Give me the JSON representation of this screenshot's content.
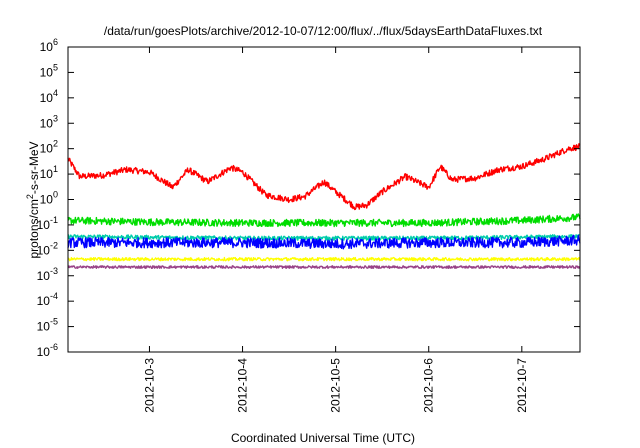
{
  "chart_data": {
    "type": "line",
    "title": "/data/run/goesPlots/archive/2012-10-07/12:00/flux/../flux/5daysEarthDataFluxes.txt",
    "xlabel": "Coordinated Universal Time (UTC)",
    "ylabel": {
      "prefix": "protons/cm",
      "sup": "2",
      "suffix": "-s-sr-MeV"
    },
    "yscale": "log",
    "ylim_exp": [
      -6,
      6
    ],
    "xlim": [
      "2012-10-02T03:00",
      "2012-10-07T15:00"
    ],
    "x_ticks": [
      {
        "date": "2012-10-03T00:00",
        "label": "2012-10-3"
      },
      {
        "date": "2012-10-04T00:00",
        "label": "2012-10-4"
      },
      {
        "date": "2012-10-05T00:00",
        "label": "2012-10-5"
      },
      {
        "date": "2012-10-06T00:00",
        "label": "2012-10-6"
      },
      {
        "date": "2012-10-07T00:00",
        "label": "2012-10-7"
      }
    ],
    "y_ticks": [
      {
        "base": "10",
        "exp": "-6",
        "value": 1e-06
      },
      {
        "base": "10",
        "exp": "-5",
        "value": 1e-05
      },
      {
        "base": "10",
        "exp": "-4",
        "value": 0.0001
      },
      {
        "base": "10",
        "exp": "-3",
        "value": 0.001
      },
      {
        "base": "10",
        "exp": "-2",
        "value": 0.01
      },
      {
        "base": "10",
        "exp": "-1",
        "value": 0.1
      },
      {
        "base": "10",
        "exp": "0",
        "value": 1
      },
      {
        "base": "10",
        "exp": "1",
        "value": 10
      },
      {
        "base": "10",
        "exp": "2",
        "value": 100
      },
      {
        "base": "10",
        "exp": "3",
        "value": 1000
      },
      {
        "base": "10",
        "exp": "4",
        "value": 10000
      },
      {
        "base": "10",
        "exp": "5",
        "value": 100000
      },
      {
        "base": "10",
        "exp": "6",
        "value": 1000000
      }
    ],
    "grid": false,
    "legend": "none",
    "series": [
      {
        "color": "#ff0000",
        "noise": 0.12,
        "x": [
          "2012-10-02T03:00",
          "2012-10-02T06:00",
          "2012-10-02T12:00",
          "2012-10-02T18:00",
          "2012-10-03T00:00",
          "2012-10-03T06:00",
          "2012-10-03T10:00",
          "2012-10-03T15:00",
          "2012-10-03T21:00",
          "2012-10-04T00:00",
          "2012-10-04T06:00",
          "2012-10-04T12:00",
          "2012-10-04T16:00",
          "2012-10-04T21:00",
          "2012-10-05T00:00",
          "2012-10-05T05:00",
          "2012-10-05T08:00",
          "2012-10-05T12:00",
          "2012-10-05T18:00",
          "2012-10-06T00:00",
          "2012-10-06T03:00",
          "2012-10-06T06:00",
          "2012-10-06T12:00",
          "2012-10-06T18:00",
          "2012-10-07T00:00",
          "2012-10-07T06:00",
          "2012-10-07T12:00",
          "2012-10-07T15:00"
        ],
        "y": [
          40,
          8,
          9,
          15,
          12,
          3,
          15,
          5,
          18,
          12,
          1.5,
          1.0,
          1.3,
          5,
          2,
          0.5,
          0.6,
          2,
          8,
          3,
          20,
          6,
          7,
          15,
          20,
          40,
          100,
          120
        ]
      },
      {
        "color": "#00dd00",
        "noise": 0.14,
        "x": [
          "2012-10-02T03:00",
          "2012-10-03T00:00",
          "2012-10-04T00:00",
          "2012-10-05T00:00",
          "2012-10-06T00:00",
          "2012-10-07T00:00",
          "2012-10-07T15:00"
        ],
        "y": [
          0.15,
          0.13,
          0.12,
          0.12,
          0.12,
          0.15,
          0.2
        ]
      },
      {
        "color": "#00ccaa",
        "noise": 0.08,
        "x": [
          "2012-10-02T03:00",
          "2012-10-04T00:00",
          "2012-10-06T00:00",
          "2012-10-07T15:00"
        ],
        "y": [
          0.035,
          0.03,
          0.03,
          0.035
        ]
      },
      {
        "color": "#0000ff",
        "noise": 0.2,
        "x": [
          "2012-10-02T03:00",
          "2012-10-03T00:00",
          "2012-10-04T00:00",
          "2012-10-05T00:00",
          "2012-10-06T00:00",
          "2012-10-07T00:00",
          "2012-10-07T15:00"
        ],
        "y": [
          0.02,
          0.02,
          0.02,
          0.018,
          0.02,
          0.02,
          0.025
        ]
      },
      {
        "color": "#ffff00",
        "noise": 0.06,
        "x": [
          "2012-10-02T03:00",
          "2012-10-07T15:00"
        ],
        "y": [
          0.0045,
          0.0045
        ]
      },
      {
        "color": "#994488",
        "noise": 0.05,
        "x": [
          "2012-10-02T03:00",
          "2012-10-07T15:00"
        ],
        "y": [
          0.0022,
          0.0022
        ]
      }
    ]
  }
}
